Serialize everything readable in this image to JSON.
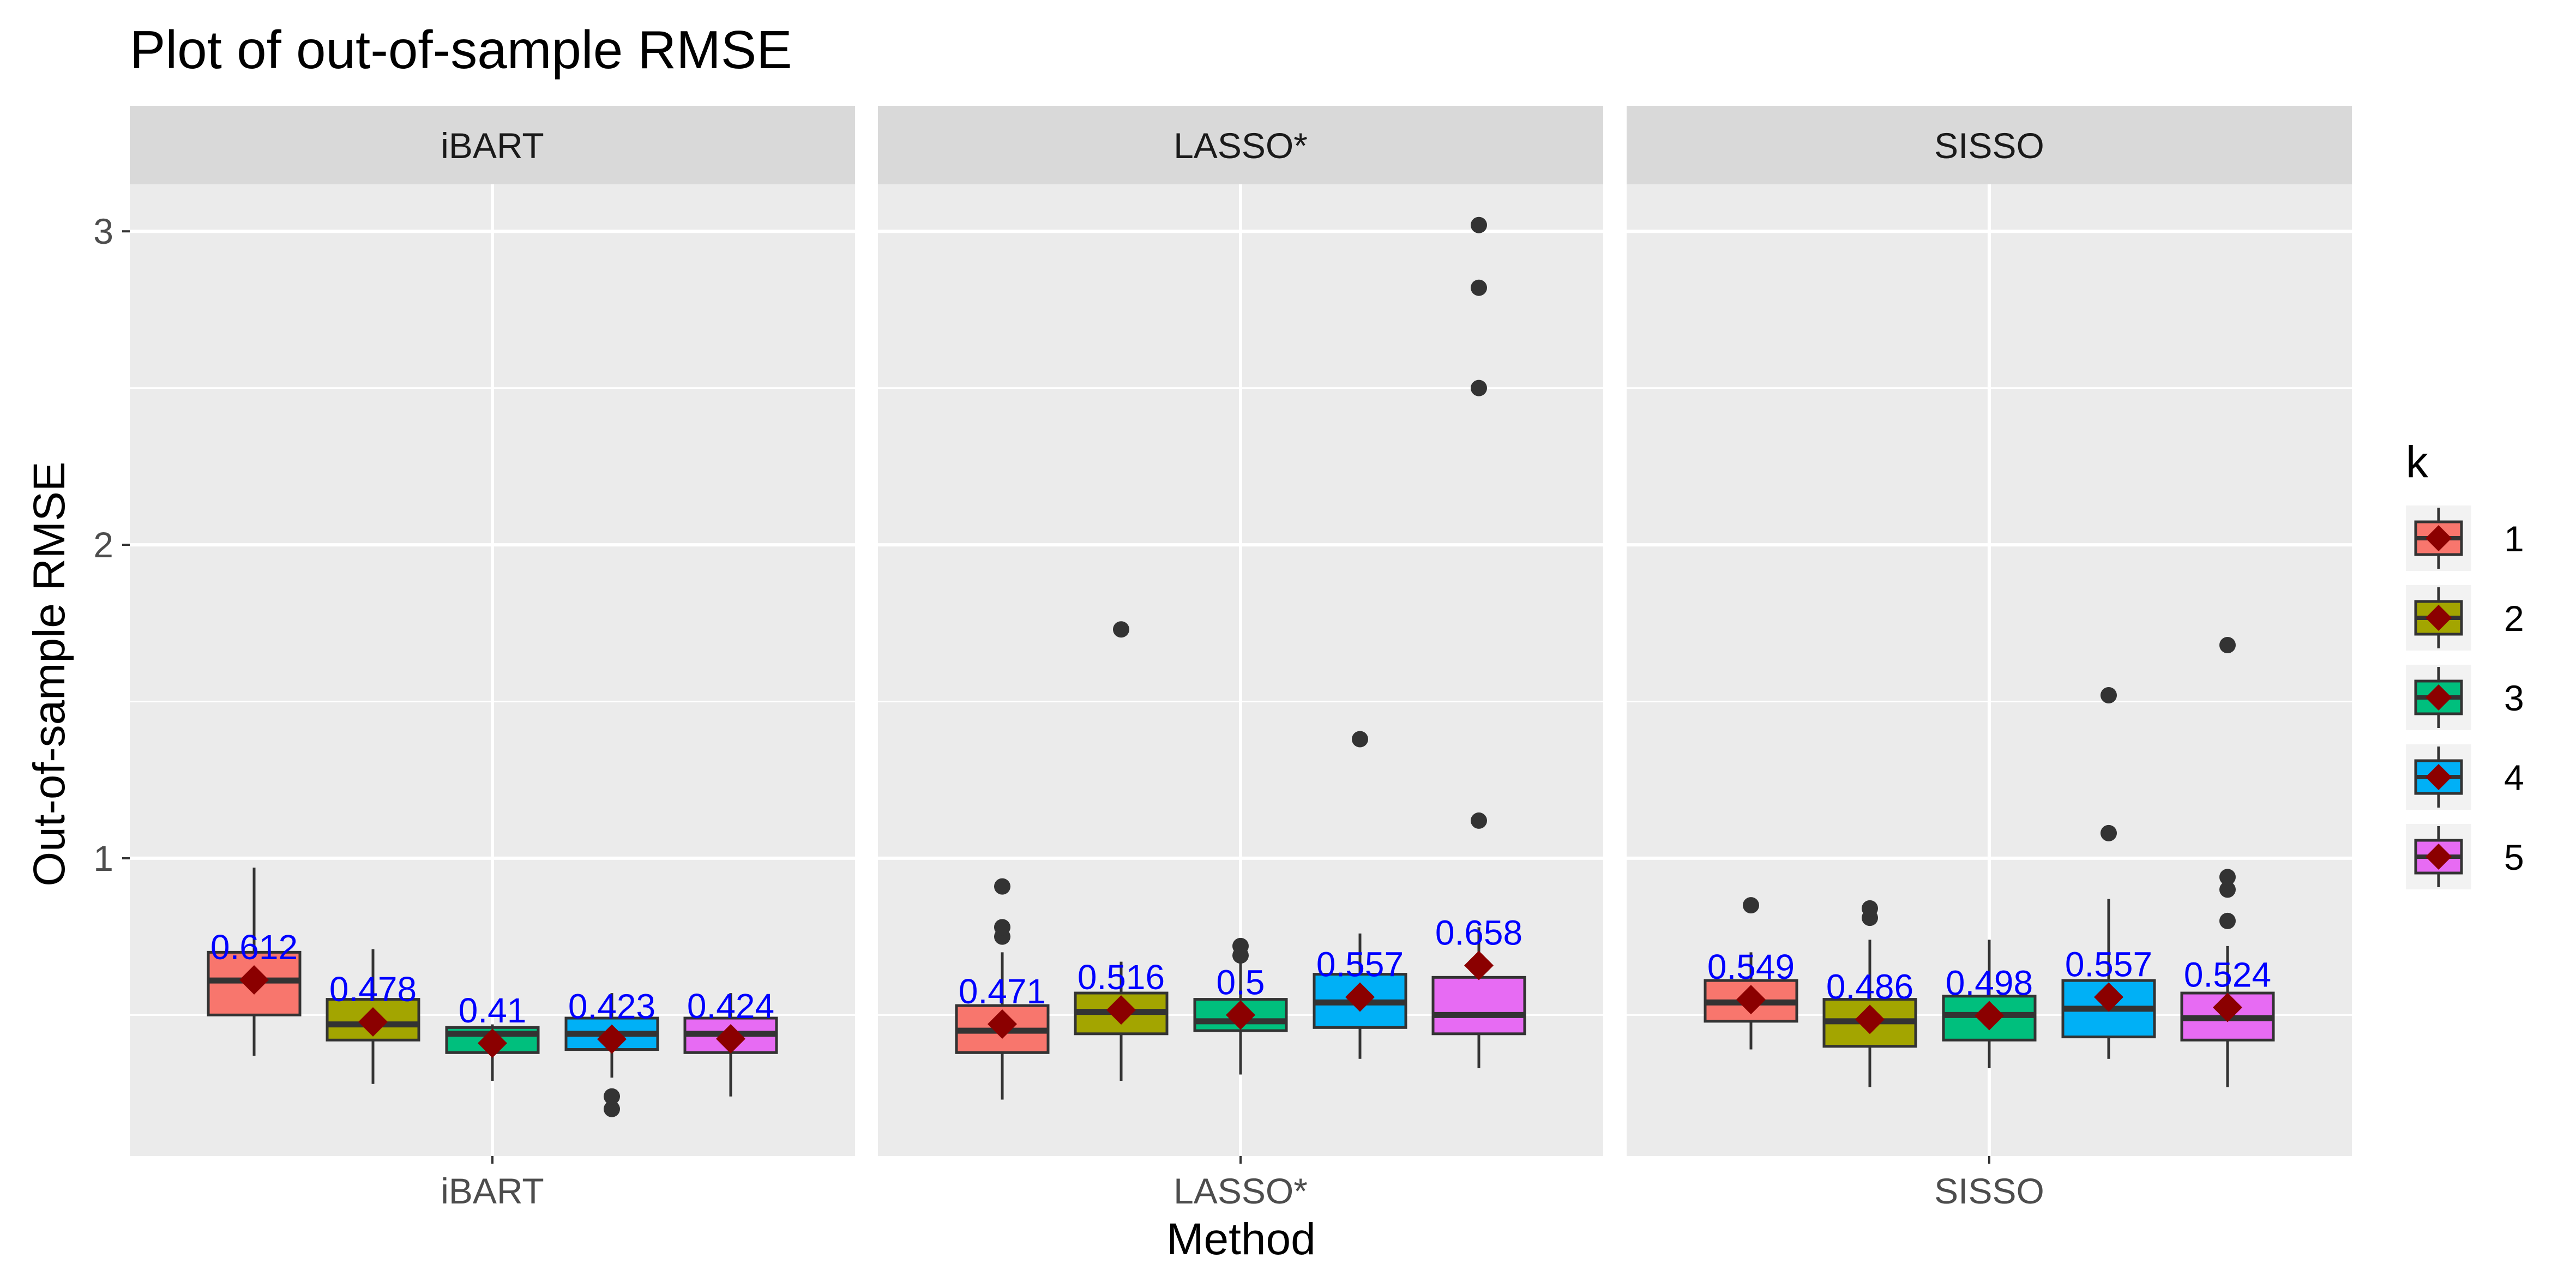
{
  "chart_data": {
    "type": "box",
    "title": "Plot of out-of-sample RMSE",
    "xlabel": "Method",
    "ylabel": "Out-of-sample RMSE",
    "ylim": [
      0.05,
      3.15
    ],
    "yticks": [
      1,
      2,
      3
    ],
    "grid": true,
    "legend": {
      "title": "k",
      "position": "right",
      "entries": [
        "1",
        "2",
        "3",
        "4",
        "5"
      ]
    },
    "colors": {
      "1": "#F8766D",
      "2": "#A3A500",
      "3": "#00BF7D",
      "4": "#00B0F6",
      "5": "#E76BF3",
      "mean_marker": "#8B0000",
      "mean_label": "#0000FF",
      "panel_bg": "#EBEBEB",
      "strip_bg": "#D9D9D9"
    },
    "panels": [
      {
        "facet": "iBART",
        "x_label": "iBART",
        "groups": [
          {
            "k": "1",
            "min": 0.37,
            "q1": 0.5,
            "median": 0.61,
            "q3": 0.7,
            "max": 0.97,
            "mean": 0.612,
            "mean_label": "0.612",
            "outliers": []
          },
          {
            "k": "2",
            "min": 0.28,
            "q1": 0.42,
            "median": 0.47,
            "q3": 0.55,
            "max": 0.71,
            "mean": 0.478,
            "mean_label": "0.478",
            "outliers": []
          },
          {
            "k": "3",
            "min": 0.29,
            "q1": 0.38,
            "median": 0.44,
            "q3": 0.46,
            "max": 0.47,
            "mean": 0.41,
            "mean_label": "0.41",
            "outliers": []
          },
          {
            "k": "4",
            "min": 0.3,
            "q1": 0.39,
            "median": 0.44,
            "q3": 0.49,
            "max": 0.57,
            "mean": 0.423,
            "mean_label": "0.423",
            "outliers": [
              0.2,
              0.24
            ]
          },
          {
            "k": "5",
            "min": 0.24,
            "q1": 0.38,
            "median": 0.44,
            "q3": 0.49,
            "max": 0.57,
            "mean": 0.424,
            "mean_label": "0.424",
            "outliers": []
          }
        ]
      },
      {
        "facet": "LASSO*",
        "x_label": "LASSO*",
        "groups": [
          {
            "k": "1",
            "min": 0.23,
            "q1": 0.38,
            "median": 0.45,
            "q3": 0.53,
            "max": 0.7,
            "mean": 0.471,
            "mean_label": "0.471",
            "outliers": [
              0.75,
              0.78,
              0.91
            ]
          },
          {
            "k": "2",
            "min": 0.29,
            "q1": 0.44,
            "median": 0.51,
            "q3": 0.57,
            "max": 0.67,
            "mean": 0.516,
            "mean_label": "0.516",
            "outliers": [
              1.73
            ]
          },
          {
            "k": "3",
            "min": 0.31,
            "q1": 0.45,
            "median": 0.48,
            "q3": 0.55,
            "max": 0.68,
            "mean": 0.5,
            "mean_label": "0.5",
            "outliers": [
              0.69,
              0.72
            ]
          },
          {
            "k": "4",
            "min": 0.36,
            "q1": 0.46,
            "median": 0.54,
            "q3": 0.63,
            "max": 0.76,
            "mean": 0.557,
            "mean_label": "0.557",
            "outliers": [
              1.38
            ]
          },
          {
            "k": "5",
            "min": 0.33,
            "q1": 0.44,
            "median": 0.5,
            "q3": 0.62,
            "max": 0.78,
            "mean": 0.658,
            "mean_label": "0.658",
            "outliers": [
              1.12,
              2.5,
              2.82,
              3.02
            ]
          }
        ]
      },
      {
        "facet": "SISSO",
        "x_label": "SISSO",
        "groups": [
          {
            "k": "1",
            "min": 0.39,
            "q1": 0.48,
            "median": 0.54,
            "q3": 0.61,
            "max": 0.7,
            "mean": 0.549,
            "mean_label": "0.549",
            "outliers": [
              0.85
            ]
          },
          {
            "k": "2",
            "min": 0.27,
            "q1": 0.4,
            "median": 0.48,
            "q3": 0.55,
            "max": 0.74,
            "mean": 0.486,
            "mean_label": "0.486",
            "outliers": [
              0.81,
              0.84
            ]
          },
          {
            "k": "3",
            "min": 0.33,
            "q1": 0.42,
            "median": 0.5,
            "q3": 0.56,
            "max": 0.74,
            "mean": 0.498,
            "mean_label": "0.498",
            "outliers": []
          },
          {
            "k": "4",
            "min": 0.36,
            "q1": 0.43,
            "median": 0.52,
            "q3": 0.61,
            "max": 0.87,
            "mean": 0.557,
            "mean_label": "0.557",
            "outliers": [
              1.08,
              1.52
            ]
          },
          {
            "k": "5",
            "min": 0.27,
            "q1": 0.42,
            "median": 0.49,
            "q3": 0.57,
            "max": 0.72,
            "mean": 0.524,
            "mean_label": "0.524",
            "outliers": [
              0.8,
              0.9,
              0.94,
              1.68
            ]
          }
        ]
      }
    ]
  }
}
